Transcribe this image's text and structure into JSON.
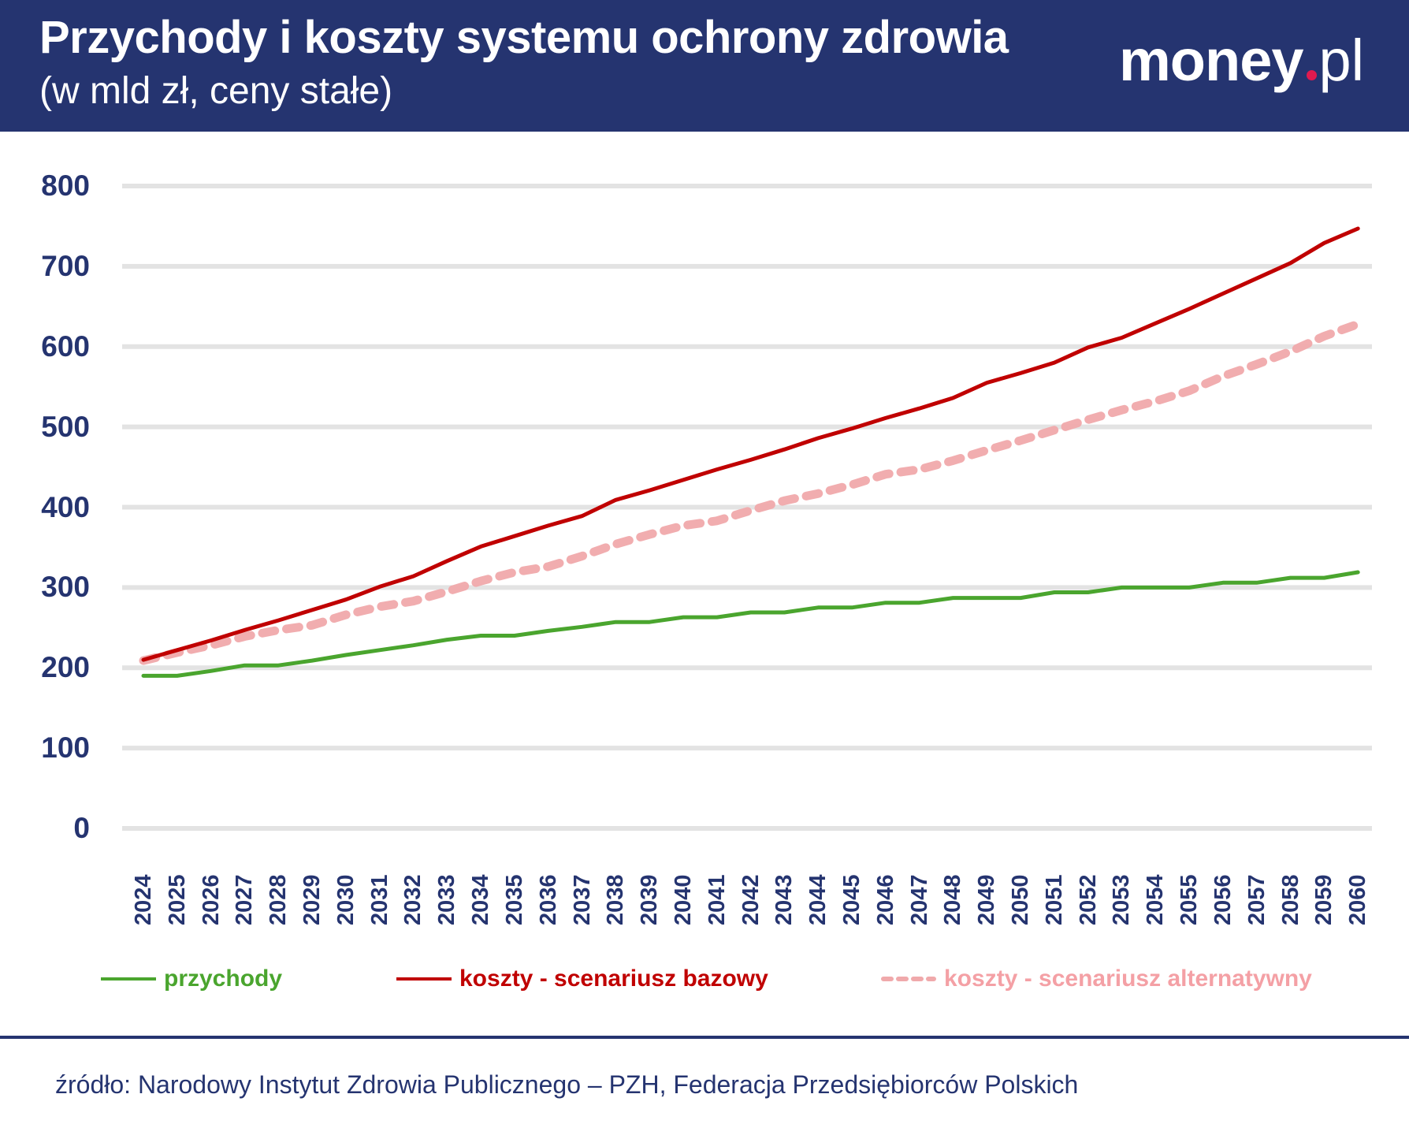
{
  "header": {
    "title": "Przychody i koszty systemu ochrony zdrowia",
    "subtitle": "(w mld zł, ceny stałe)",
    "logo": {
      "name": "money",
      "tld": "pl",
      "dot_color": "#e01a4f"
    }
  },
  "colors": {
    "header_bg": "#253470",
    "axis_text": "#253470",
    "grid": "#e3e3e3",
    "przychody": "#4aa52e",
    "bazowy": "#c00000",
    "alternatywny": "#f0a9ab",
    "alternatywny_text": "#f4a0a5"
  },
  "legend": {
    "przychody": "przychody",
    "bazowy": "koszty - scenariusz bazowy",
    "alternatywny": "koszty - scenariusz alternatywny"
  },
  "footer": {
    "source": "źródło: Narodowy Instytut Zdrowia Publicznego – PZH, Federacja Przedsiębiorców Polskich"
  },
  "chart_data": {
    "type": "line",
    "title": "Przychody i koszty systemu ochrony zdrowia",
    "subtitle": "(w mld zł, ceny stałe)",
    "xlabel": "",
    "ylabel": "",
    "ylim": [
      0,
      800
    ],
    "yticks": [
      0,
      100,
      200,
      300,
      400,
      500,
      600,
      700,
      800
    ],
    "grid": true,
    "legend_position": "bottom",
    "x": [
      "2024",
      "2025",
      "2026",
      "2027",
      "2028",
      "2029",
      "2030",
      "2031",
      "2032",
      "2033",
      "2034",
      "2035",
      "2036",
      "2037",
      "2038",
      "2039",
      "2040",
      "2041",
      "2042",
      "2043",
      "2044",
      "2045",
      "2046",
      "2047",
      "2048",
      "2049",
      "2050",
      "2051",
      "2052",
      "2053",
      "2054",
      "2055",
      "2056",
      "2057",
      "2058",
      "2059",
      "2060"
    ],
    "series": [
      {
        "name": "przychody",
        "style": "solid",
        "color": "#4aa52e",
        "values": [
          190,
          190,
          196,
          203,
          203,
          209,
          216,
          222,
          228,
          235,
          240,
          240,
          246,
          251,
          257,
          257,
          263,
          263,
          269,
          269,
          275,
          275,
          281,
          281,
          287,
          287,
          287,
          294,
          294,
          300,
          300,
          300,
          306,
          306,
          312,
          312,
          319
        ]
      },
      {
        "name": "koszty - scenariusz bazowy",
        "style": "solid",
        "color": "#c00000",
        "values": [
          210,
          222,
          234,
          247,
          259,
          272,
          285,
          301,
          314,
          333,
          351,
          364,
          377,
          389,
          409,
          421,
          434,
          447,
          459,
          472,
          486,
          498,
          511,
          523,
          536,
          555,
          567,
          580,
          599,
          611,
          629,
          647,
          666,
          685,
          704,
          729,
          747
        ]
      },
      {
        "name": "koszty - scenariusz alternatywny",
        "style": "dashed",
        "color": "#f0a9ab",
        "values": [
          209,
          219,
          228,
          239,
          247,
          253,
          266,
          276,
          283,
          295,
          308,
          319,
          326,
          339,
          354,
          366,
          377,
          383,
          396,
          408,
          417,
          428,
          441,
          447,
          458,
          471,
          483,
          496,
          509,
          521,
          532,
          545,
          563,
          578,
          594,
          613,
          628
        ]
      }
    ]
  }
}
